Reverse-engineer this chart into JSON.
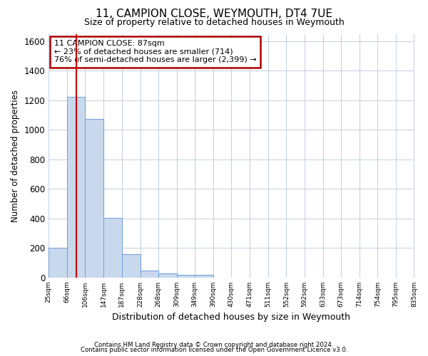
{
  "title": "11, CAMPION CLOSE, WEYMOUTH, DT4 7UE",
  "subtitle": "Size of property relative to detached houses in Weymouth",
  "xlabel": "Distribution of detached houses by size in Weymouth",
  "ylabel": "Number of detached properties",
  "footnote1": "Contains HM Land Registry data © Crown copyright and database right 2024.",
  "footnote2": "Contains public sector information licensed under the Open Government Licence v3.0.",
  "property_size": 87,
  "property_label": "11 CAMPION CLOSE: 87sqm",
  "annotation_line1": "← 23% of detached houses are smaller (714)",
  "annotation_line2": "76% of semi-detached houses are larger (2,399) →",
  "bar_color": "#c9d9ed",
  "bar_edge_color": "#6a9fd8",
  "vline_color": "#cc0000",
  "annotation_box_edgecolor": "#aa0000",
  "background_color": "#ffffff",
  "grid_color": "#c8d4e0",
  "bin_edges": [
    25,
    66,
    106,
    147,
    187,
    228,
    268,
    309,
    349,
    390,
    430,
    471,
    511,
    552,
    592,
    633,
    673,
    714,
    754,
    795,
    835
  ],
  "bar_heights": [
    200,
    1225,
    1075,
    405,
    160,
    50,
    30,
    20,
    20,
    0,
    0,
    0,
    0,
    0,
    0,
    0,
    0,
    0,
    0,
    0
  ],
  "ylim": [
    0,
    1650
  ],
  "yticks": [
    0,
    200,
    400,
    600,
    800,
    1000,
    1200,
    1400,
    1600
  ]
}
